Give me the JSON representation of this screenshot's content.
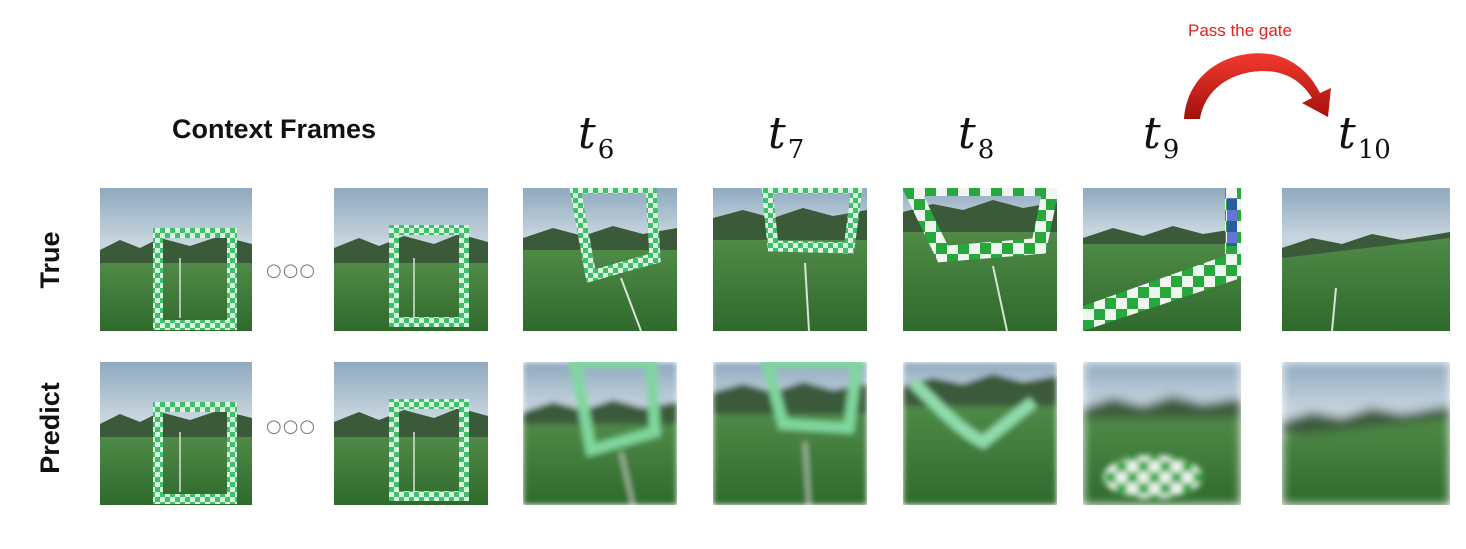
{
  "header": {
    "context_title": "Context Frames",
    "times": [
      {
        "base": "t",
        "sub": "6"
      },
      {
        "base": "t",
        "sub": "7"
      },
      {
        "base": "t",
        "sub": "8"
      },
      {
        "base": "t",
        "sub": "9"
      },
      {
        "base": "t",
        "sub": "10"
      }
    ]
  },
  "annotation": {
    "text": "Pass the gate",
    "color": "#e0221c"
  },
  "rows": [
    {
      "label": "True"
    },
    {
      "label": "Predict"
    }
  ],
  "ellipsis": "○○○",
  "colors": {
    "sky": "#9fb6c8",
    "grass": "#3f7a3a",
    "gate": "#5fd08a",
    "arrow": "#d81e1a"
  }
}
